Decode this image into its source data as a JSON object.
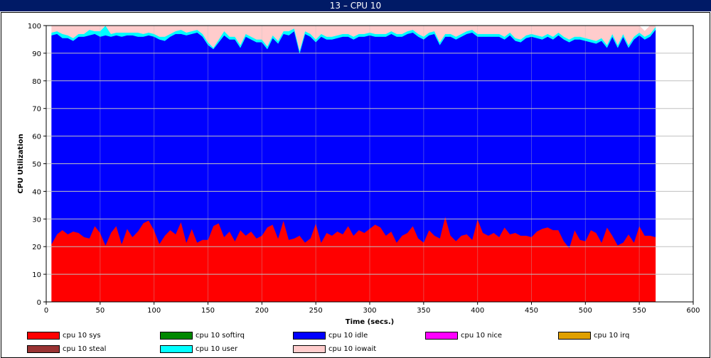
{
  "window": {
    "title": "13 – CPU 10"
  },
  "chart_data": {
    "type": "area",
    "stacked": true,
    "title": "13 – CPU 10",
    "xlabel": "Time (secs.)",
    "ylabel": "CPU Utilization",
    "xlim": [
      0,
      600
    ],
    "ylim": [
      0,
      100
    ],
    "xticks": [
      0,
      50,
      100,
      150,
      200,
      250,
      300,
      350,
      400,
      450,
      500,
      550,
      600
    ],
    "yticks": [
      0,
      10,
      20,
      30,
      40,
      50,
      60,
      70,
      80,
      90,
      100
    ],
    "grid": true,
    "legend_position": "bottom",
    "x": [
      5,
      10,
      15,
      20,
      25,
      30,
      35,
      40,
      45,
      50,
      55,
      60,
      65,
      70,
      75,
      80,
      85,
      90,
      95,
      100,
      105,
      110,
      115,
      120,
      125,
      130,
      135,
      140,
      145,
      150,
      155,
      160,
      165,
      170,
      175,
      180,
      185,
      190,
      195,
      200,
      205,
      210,
      215,
      220,
      225,
      230,
      235,
      240,
      245,
      250,
      255,
      260,
      265,
      270,
      275,
      280,
      285,
      290,
      295,
      300,
      305,
      310,
      315,
      320,
      325,
      330,
      335,
      340,
      345,
      350,
      355,
      360,
      365,
      370,
      375,
      380,
      385,
      390,
      395,
      400,
      405,
      410,
      415,
      420,
      425,
      430,
      435,
      440,
      445,
      450,
      455,
      460,
      465,
      470,
      475,
      480,
      485,
      490,
      495,
      500,
      505,
      510,
      515,
      520,
      525,
      530,
      535,
      540,
      545,
      550,
      555,
      560,
      565
    ],
    "series": [
      {
        "name": "cpu 10 sys",
        "color": "#ff0000",
        "values": [
          21,
          24.5,
          26,
          24.5,
          25.5,
          25,
          23.5,
          23,
          27.5,
          25,
          20.5,
          25,
          27.5,
          21,
          26.5,
          23.5,
          25.5,
          28.5,
          29.5,
          26,
          21,
          24,
          26,
          24.5,
          29,
          21.5,
          26.5,
          21.5,
          22.5,
          22.5,
          27.5,
          28.5,
          23.5,
          25.5,
          22,
          26,
          24,
          25.5,
          23,
          24,
          27,
          28,
          23,
          29.5,
          22.5,
          23,
          24,
          21.5,
          23,
          28.5,
          21.5,
          25,
          24,
          25.5,
          24.5,
          27.5,
          24,
          26,
          25,
          26.5,
          28,
          27,
          24,
          25.5,
          21.5,
          24,
          25,
          27.5,
          23,
          21.5,
          26,
          24,
          23,
          31,
          24,
          22,
          24,
          24.5,
          22.5,
          30,
          25,
          24,
          25,
          23.5,
          27,
          24.5,
          25,
          24,
          24,
          23.5,
          25.5,
          26.5,
          27,
          26,
          26,
          22,
          19.5,
          26,
          22.5,
          22,
          26,
          25,
          21.5,
          27,
          24,
          20.5,
          21.5,
          24.5,
          21.5,
          27.5,
          24,
          24,
          23.5
        ]
      },
      {
        "name": "cpu 10 softirq",
        "color": "#008800",
        "values": [
          0,
          0,
          0,
          0,
          0,
          0,
          0,
          0,
          0,
          0,
          0,
          0,
          0,
          0,
          0,
          0,
          0,
          0,
          0,
          0,
          0,
          0,
          0,
          0,
          0,
          0,
          0,
          0,
          0,
          0,
          0,
          0,
          0,
          0,
          0,
          0,
          0,
          0,
          0,
          0,
          0,
          0,
          0,
          0,
          0,
          0,
          0,
          0,
          0,
          0,
          0,
          0,
          0,
          0,
          0,
          0,
          0,
          0,
          0,
          0,
          0,
          0,
          0,
          0,
          0,
          0,
          0,
          0,
          0,
          0,
          0,
          0,
          0,
          0,
          0,
          0,
          0,
          0,
          0,
          0,
          0,
          0,
          0,
          0,
          0,
          0,
          0,
          0,
          0,
          0,
          0,
          0,
          0,
          0,
          0,
          0,
          0,
          0,
          0,
          0,
          0,
          0,
          0,
          0,
          0,
          0,
          0,
          0,
          0,
          0,
          0,
          0,
          0
        ]
      },
      {
        "name": "cpu 10 idle",
        "color": "#0000ff",
        "values": [
          75.5,
          72.5,
          69.5,
          71,
          69,
          71,
          72.5,
          73.5,
          69.5,
          71,
          76,
          71,
          69,
          75,
          70,
          73,
          70.5,
          67.5,
          67,
          70,
          74,
          70.5,
          70,
          72.5,
          68,
          75,
          70.5,
          76,
          73.5,
          70.5,
          64,
          65.5,
          73,
          69.5,
          73,
          66,
          72,
          69.5,
          71,
          70,
          64.5,
          67.5,
          70.5,
          67.5,
          74,
          75,
          66,
          75.5,
          73,
          65.5,
          74.5,
          70,
          71,
          70,
          71.5,
          68.5,
          71,
          70,
          71,
          70,
          68,
          69,
          72,
          71.5,
          74.5,
          72,
          72,
          70,
          73,
          73.5,
          70.5,
          73,
          70,
          65,
          72,
          73,
          72,
          72.5,
          75,
          66,
          71,
          72,
          71,
          72.5,
          68,
          72,
          69.5,
          70,
          71.5,
          72.5,
          70,
          68.5,
          69,
          69,
          70.5,
          73,
          74.5,
          69,
          72.5,
          72.5,
          68,
          68.5,
          73,
          65,
          72,
          71.5,
          74.5,
          67.5,
          73.5,
          69,
          71,
          72,
          75
        ]
      },
      {
        "name": "cpu 10 nice",
        "color": "#ff00ff",
        "values": [
          0,
          0,
          0,
          0,
          0,
          0,
          0,
          0,
          0,
          0,
          0,
          0,
          0,
          0,
          0,
          0,
          0,
          0,
          0,
          0,
          0,
          0,
          0,
          0,
          0,
          0,
          0,
          0,
          0,
          0,
          0,
          0,
          0,
          0,
          0,
          0,
          0,
          0,
          0,
          0,
          0,
          0,
          0,
          0,
          0,
          0,
          0,
          0,
          0,
          0,
          0,
          0,
          0,
          0,
          0,
          0,
          0,
          0,
          0,
          0,
          0,
          0,
          0,
          0,
          0,
          0,
          0,
          0,
          0,
          0,
          0,
          0,
          0,
          0,
          0,
          0,
          0,
          0,
          0,
          0,
          0,
          0,
          0,
          0,
          0,
          0,
          0,
          0,
          0,
          0,
          0,
          0,
          0,
          0,
          0,
          0,
          0,
          0,
          0,
          0,
          0,
          0,
          0,
          0,
          0,
          0,
          0,
          0,
          0,
          0,
          0,
          0,
          0
        ]
      },
      {
        "name": "cpu 10 irq",
        "color": "#e0a000",
        "values": [
          0,
          0,
          0,
          0,
          0,
          0,
          0,
          0,
          0,
          0,
          0,
          0,
          0,
          0,
          0,
          0,
          0,
          0,
          0,
          0,
          0,
          0,
          0,
          0,
          0,
          0,
          0,
          0,
          0,
          0,
          0,
          0,
          0,
          0,
          0,
          0,
          0,
          0,
          0,
          0,
          0,
          0,
          0,
          0,
          0,
          0,
          0,
          0,
          0,
          0,
          0,
          0,
          0,
          0,
          0,
          0,
          0,
          0,
          0,
          0,
          0,
          0,
          0,
          0,
          0,
          0,
          0,
          0,
          0,
          0,
          0,
          0,
          0,
          0,
          0,
          0,
          0,
          0,
          0,
          0,
          0,
          0,
          0,
          0,
          0,
          0,
          0,
          0,
          0,
          0,
          0,
          0,
          0,
          0,
          0,
          0,
          0,
          0,
          0,
          0,
          0,
          0,
          0,
          0,
          0,
          0,
          0,
          0,
          0,
          0,
          0,
          0,
          0
        ]
      },
      {
        "name": "cpu 10 steal",
        "color": "#993333",
        "values": [
          0,
          0,
          0,
          0,
          0,
          0,
          0,
          0,
          0,
          0,
          0,
          0,
          0,
          0,
          0,
          0,
          0,
          0,
          0,
          0,
          0,
          0,
          0,
          0,
          0,
          0,
          0,
          0,
          0,
          0,
          0,
          0,
          0,
          0,
          0,
          0,
          0,
          0,
          0,
          0,
          0,
          0,
          0,
          0,
          0,
          0,
          0,
          0,
          0,
          0,
          0,
          0,
          0,
          0,
          0,
          0,
          0,
          0,
          0,
          0,
          0,
          0,
          0,
          0,
          0,
          0,
          0,
          0,
          0,
          0,
          0,
          0,
          0,
          0,
          0,
          0,
          0,
          0,
          0,
          0,
          0,
          0,
          0,
          0,
          0,
          0,
          0,
          0,
          0,
          0,
          0,
          0,
          0,
          0,
          0,
          0,
          0,
          0,
          0,
          0,
          0,
          0,
          0,
          0,
          0,
          0,
          0,
          0,
          0,
          0,
          0,
          0,
          0
        ]
      },
      {
        "name": "cpu 10 user",
        "color": "#00ffff",
        "values": [
          1,
          1,
          1.5,
          1,
          1,
          1,
          1,
          2,
          1,
          2,
          3.5,
          1,
          1,
          1.5,
          1,
          1,
          1.5,
          1,
          1,
          1,
          1,
          1.5,
          1,
          1,
          1.5,
          1,
          1,
          1,
          1,
          1,
          0.5,
          1,
          1.5,
          1,
          1,
          1,
          1,
          1,
          1,
          1,
          1,
          1,
          1,
          1,
          1.5,
          1,
          1,
          1,
          1,
          1,
          1,
          1,
          1,
          1,
          1,
          1,
          1,
          1,
          1,
          1,
          1,
          1,
          1,
          1,
          1,
          1,
          1,
          1,
          1,
          1,
          1,
          1,
          1,
          1,
          1,
          1,
          1,
          1,
          1,
          1,
          1,
          1,
          1,
          1,
          1,
          1,
          1,
          1,
          1,
          1,
          1,
          1,
          1,
          1,
          1,
          1,
          1,
          1,
          1,
          1,
          1,
          1,
          1,
          1,
          1,
          1,
          1,
          1,
          1,
          1,
          1,
          1,
          1
        ]
      },
      {
        "name": "cpu 10 iowait",
        "color": "#ffcccc",
        "values": [
          2.5,
          2,
          3,
          3.5,
          4.5,
          3,
          3,
          1.5,
          2,
          2,
          0,
          3,
          2.5,
          2.5,
          2.5,
          2.5,
          2.5,
          3,
          2.5,
          3,
          4,
          4,
          3,
          2,
          1.5,
          3,
          2,
          1.5,
          3,
          6,
          8,
          5,
          2,
          4,
          4,
          7,
          3,
          4,
          5,
          5,
          7.5,
          3.5,
          5.5,
          2,
          2,
          1,
          9,
          2,
          3,
          5,
          3,
          4,
          4,
          3.5,
          3,
          3,
          4,
          3,
          3,
          2.5,
          3,
          3,
          3,
          2,
          3,
          3,
          2,
          1.5,
          3,
          4,
          2.5,
          2,
          6,
          3,
          3,
          4,
          3,
          2,
          1.5,
          3,
          3,
          3,
          3,
          3.5,
          4,
          2.5,
          4.5,
          5,
          3.5,
          3,
          3.5,
          4,
          3,
          4,
          2.5,
          4,
          5,
          4,
          4,
          4.5,
          5,
          5.5,
          4.5,
          7,
          3,
          7,
          3,
          7.5,
          4,
          2.5,
          2,
          3,
          0.5
        ]
      }
    ]
  }
}
